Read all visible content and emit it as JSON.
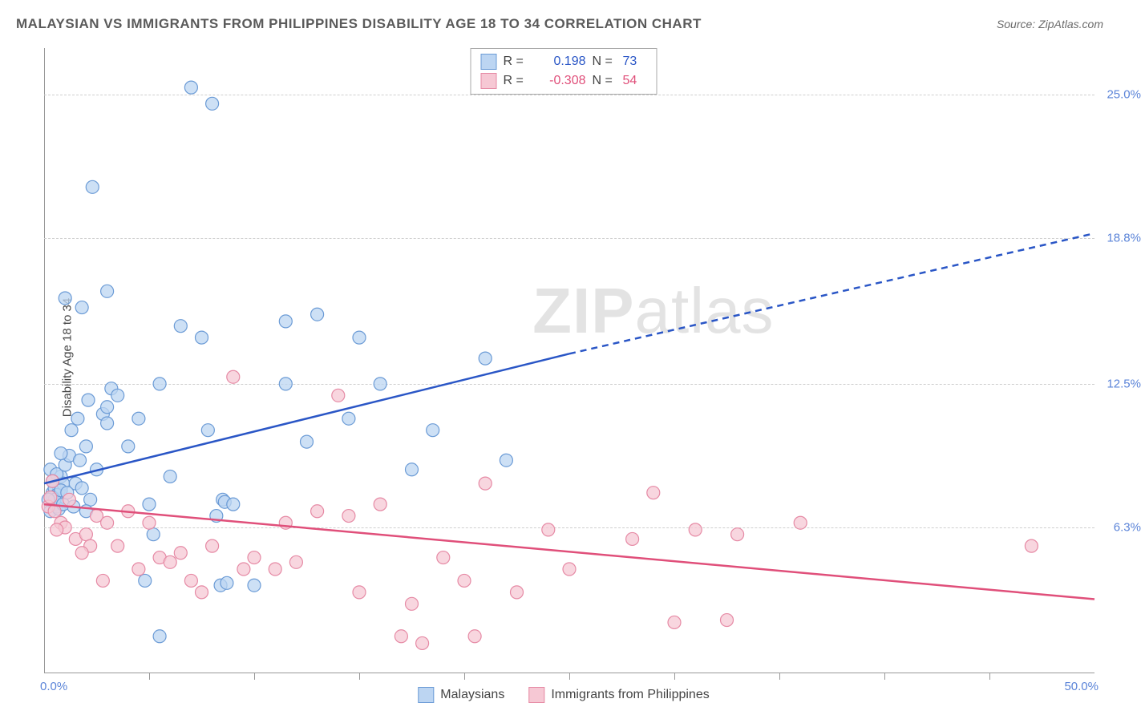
{
  "title": "MALAYSIAN VS IMMIGRANTS FROM PHILIPPINES DISABILITY AGE 18 TO 34 CORRELATION CHART",
  "source_label": "Source: ",
  "source_value": "ZipAtlas.com",
  "y_axis_label": "Disability Age 18 to 34",
  "watermark_bold": "ZIP",
  "watermark_rest": "atlas",
  "chart": {
    "type": "scatter",
    "xlim": [
      0,
      50
    ],
    "ylim": [
      0,
      27
    ],
    "x_origin_label": "0.0%",
    "x_max_label": "50.0%",
    "y_ticks": [
      {
        "value": 6.3,
        "label": "6.3%"
      },
      {
        "value": 12.5,
        "label": "12.5%"
      },
      {
        "value": 18.8,
        "label": "18.8%"
      },
      {
        "value": 25.0,
        "label": "25.0%"
      }
    ],
    "x_tick_positions": [
      5,
      10,
      15,
      20,
      25,
      30,
      35,
      40,
      45
    ],
    "background_color": "#ffffff",
    "grid_color": "#cfcfcf",
    "axis_color": "#999999",
    "series": [
      {
        "name": "Malaysians",
        "marker_fill": "#bcd5f2",
        "marker_stroke": "#6b9bd6",
        "marker_radius": 8,
        "trend_color": "#2a56c6",
        "trend_width": 2.5,
        "trend_solid": {
          "x1": 0,
          "y1": 8.2,
          "x2": 25,
          "y2": 13.8
        },
        "trend_dashed": {
          "x1": 25,
          "y1": 13.8,
          "x2": 50,
          "y2": 19.0
        },
        "R": "0.198",
        "N": "73",
        "points": [
          [
            0.3,
            7.0
          ],
          [
            0.5,
            7.3
          ],
          [
            0.4,
            7.8
          ],
          [
            0.6,
            7.2
          ],
          [
            0.7,
            7.9
          ],
          [
            0.8,
            8.5
          ],
          [
            0.5,
            8.0
          ],
          [
            0.6,
            7.7
          ],
          [
            0.9,
            8.2
          ],
          [
            0.3,
            8.8
          ],
          [
            0.4,
            7.6
          ],
          [
            0.7,
            7.1
          ],
          [
            0.5,
            7.5
          ],
          [
            0.8,
            7.9
          ],
          [
            0.6,
            8.6
          ],
          [
            1.0,
            9.0
          ],
          [
            1.2,
            9.4
          ],
          [
            1.5,
            8.2
          ],
          [
            1.8,
            8.0
          ],
          [
            2.0,
            9.8
          ],
          [
            1.3,
            10.5
          ],
          [
            1.6,
            11.0
          ],
          [
            2.2,
            7.5
          ],
          [
            2.5,
            8.8
          ],
          [
            2.0,
            7.0
          ],
          [
            2.8,
            11.2
          ],
          [
            3.0,
            10.8
          ],
          [
            1.0,
            16.2
          ],
          [
            1.8,
            15.8
          ],
          [
            3.2,
            12.3
          ],
          [
            3.5,
            12.0
          ],
          [
            3.0,
            11.5
          ],
          [
            2.3,
            21.0
          ],
          [
            4.0,
            9.8
          ],
          [
            4.5,
            11.0
          ],
          [
            5.0,
            7.3
          ],
          [
            5.5,
            12.5
          ],
          [
            5.2,
            6.0
          ],
          [
            4.8,
            4.0
          ],
          [
            6.0,
            8.5
          ],
          [
            6.5,
            15.0
          ],
          [
            7.0,
            25.3
          ],
          [
            7.5,
            14.5
          ],
          [
            8.0,
            24.6
          ],
          [
            8.5,
            7.5
          ],
          [
            8.6,
            7.4
          ],
          [
            8.2,
            6.8
          ],
          [
            8.4,
            3.8
          ],
          [
            8.7,
            3.9
          ],
          [
            7.8,
            10.5
          ],
          [
            9.0,
            7.3
          ],
          [
            10.0,
            3.8
          ],
          [
            11.5,
            12.5
          ],
          [
            11.5,
            15.2
          ],
          [
            12.5,
            10.0
          ],
          [
            13.0,
            15.5
          ],
          [
            14.5,
            11.0
          ],
          [
            15.0,
            14.5
          ],
          [
            16.0,
            12.5
          ],
          [
            17.5,
            8.8
          ],
          [
            18.5,
            10.5
          ],
          [
            21.0,
            13.6
          ],
          [
            22.0,
            9.2
          ],
          [
            5.5,
            1.6
          ],
          [
            0.9,
            7.3
          ],
          [
            1.1,
            7.8
          ],
          [
            0.4,
            8.3
          ],
          [
            1.4,
            7.2
          ],
          [
            0.2,
            7.5
          ],
          [
            1.7,
            9.2
          ],
          [
            2.1,
            11.8
          ],
          [
            3.0,
            16.5
          ],
          [
            0.8,
            9.5
          ]
        ]
      },
      {
        "name": "Immigrants from Philippines",
        "marker_fill": "#f6c8d4",
        "marker_stroke": "#e68aa5",
        "marker_radius": 8,
        "trend_color": "#e04f7a",
        "trend_width": 2.5,
        "trend_solid": {
          "x1": 0,
          "y1": 7.3,
          "x2": 50,
          "y2": 3.2
        },
        "R": "-0.308",
        "N": "54",
        "points": [
          [
            0.2,
            7.2
          ],
          [
            0.5,
            7.0
          ],
          [
            0.4,
            8.3
          ],
          [
            0.3,
            7.6
          ],
          [
            0.8,
            6.5
          ],
          [
            1.0,
            6.3
          ],
          [
            1.2,
            7.5
          ],
          [
            1.5,
            5.8
          ],
          [
            2.0,
            6.0
          ],
          [
            2.2,
            5.5
          ],
          [
            2.5,
            6.8
          ],
          [
            3.0,
            6.5
          ],
          [
            3.5,
            5.5
          ],
          [
            1.8,
            5.2
          ],
          [
            2.8,
            4.0
          ],
          [
            4.0,
            7.0
          ],
          [
            4.5,
            4.5
          ],
          [
            5.0,
            6.5
          ],
          [
            5.5,
            5.0
          ],
          [
            6.0,
            4.8
          ],
          [
            6.5,
            5.2
          ],
          [
            7.0,
            4.0
          ],
          [
            7.5,
            3.5
          ],
          [
            8.0,
            5.5
          ],
          [
            9.0,
            12.8
          ],
          [
            9.5,
            4.5
          ],
          [
            10.0,
            5.0
          ],
          [
            11.0,
            4.5
          ],
          [
            11.5,
            6.5
          ],
          [
            12.0,
            4.8
          ],
          [
            13.0,
            7.0
          ],
          [
            14.0,
            12.0
          ],
          [
            14.5,
            6.8
          ],
          [
            15.0,
            3.5
          ],
          [
            16.0,
            7.3
          ],
          [
            17.5,
            3.0
          ],
          [
            18.0,
            1.3
          ],
          [
            17.0,
            1.6
          ],
          [
            19.0,
            5.0
          ],
          [
            20.0,
            4.0
          ],
          [
            20.5,
            1.6
          ],
          [
            21.0,
            8.2
          ],
          [
            22.5,
            3.5
          ],
          [
            24.0,
            6.2
          ],
          [
            25.0,
            4.5
          ],
          [
            28.0,
            5.8
          ],
          [
            29.0,
            7.8
          ],
          [
            30.0,
            2.2
          ],
          [
            31.0,
            6.2
          ],
          [
            32.5,
            2.3
          ],
          [
            33.0,
            6.0
          ],
          [
            36.0,
            6.5
          ],
          [
            47.0,
            5.5
          ],
          [
            0.6,
            6.2
          ]
        ]
      }
    ]
  },
  "stats_box": {
    "r_label": "R =",
    "n_label": "N ="
  },
  "legend": {
    "series1_label": "Malaysians",
    "series2_label": "Immigrants from Philippines"
  }
}
